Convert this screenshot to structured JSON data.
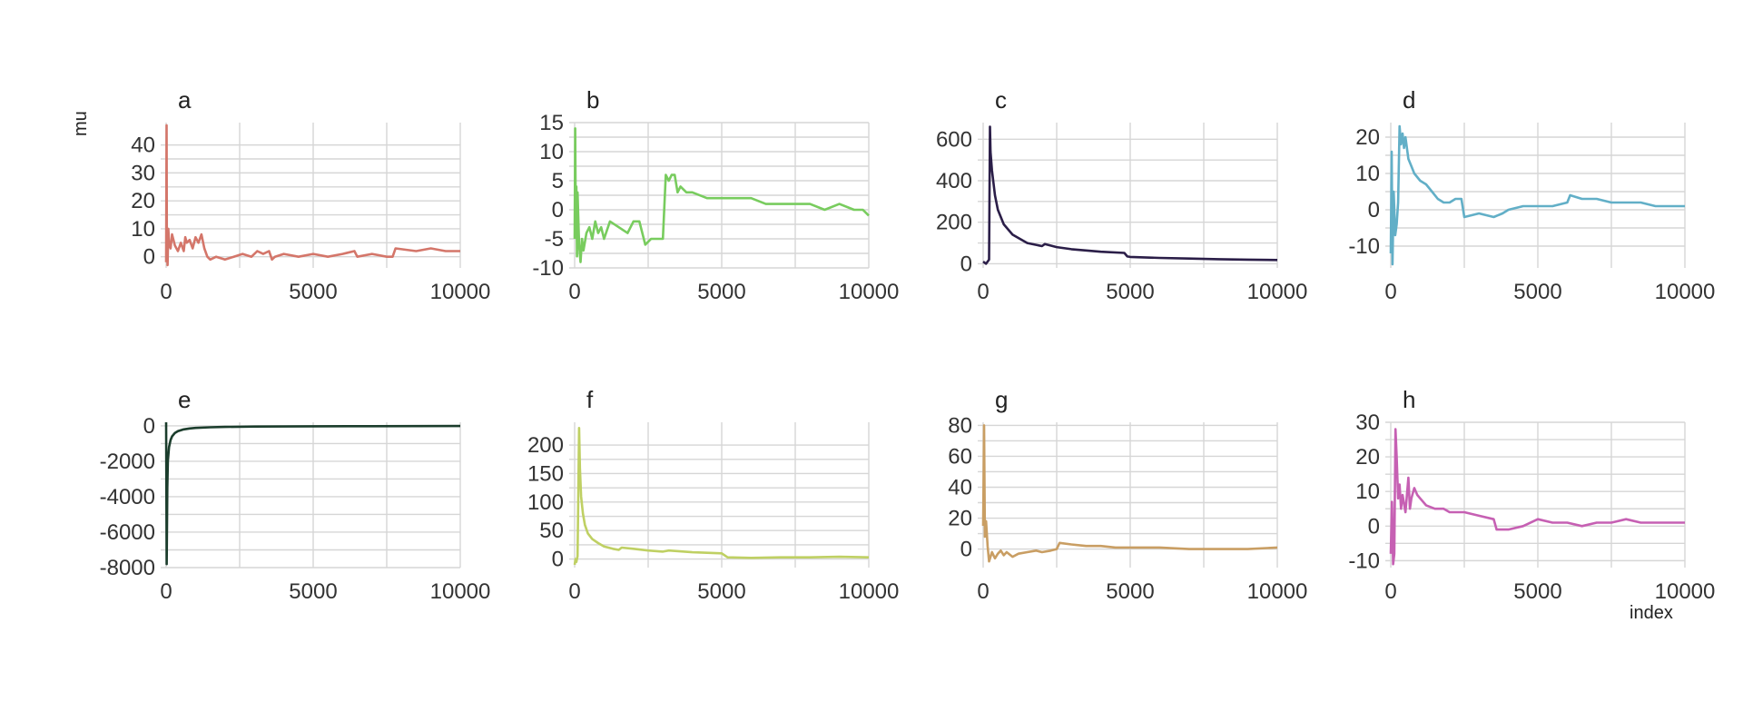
{
  "figure": {
    "ylabel": "mu",
    "xlabel": "index"
  },
  "chart_data": [
    {
      "type": "line",
      "title": "a",
      "color": "#d4766a",
      "xlim": [
        0,
        10000
      ],
      "ylim": [
        -4,
        48
      ],
      "xticks": [
        0,
        5000,
        10000
      ],
      "yticks": [
        0,
        10,
        20,
        30,
        40
      ],
      "series": [
        {
          "x": [
            0,
            15,
            25,
            50,
            75,
            100,
            150,
            200,
            300,
            400,
            500,
            600,
            650,
            700,
            800,
            900,
            1000,
            1100,
            1200,
            1300,
            1400,
            1500,
            1700,
            2000,
            2300,
            2600,
            2900,
            3100,
            3300,
            3500,
            3600,
            3700,
            4000,
            4500,
            5000,
            5500,
            6000,
            6400,
            6500,
            7000,
            7500,
            7700,
            7800,
            8500,
            9000,
            9500,
            10000
          ],
          "y": [
            -2,
            47,
            5,
            -3,
            10,
            5,
            3,
            8,
            4,
            2,
            5,
            2,
            7,
            5,
            6,
            3,
            7,
            5,
            8,
            3,
            0,
            -1,
            0,
            -1,
            0,
            1,
            0,
            2,
            1,
            2,
            -1,
            0,
            1,
            0,
            1,
            0,
            1,
            2,
            0,
            1,
            0,
            0,
            3,
            2,
            3,
            2,
            2
          ]
        }
      ]
    },
    {
      "type": "line",
      "title": "b",
      "color": "#78cc5e",
      "xlim": [
        0,
        10000
      ],
      "ylim": [
        -10,
        15
      ],
      "xticks": [
        0,
        5000,
        10000
      ],
      "yticks": [
        -10,
        -5,
        0,
        5,
        10,
        15
      ],
      "series": [
        {
          "x": [
            0,
            20,
            40,
            60,
            80,
            100,
            150,
            200,
            250,
            300,
            400,
            500,
            600,
            700,
            800,
            900,
            1000,
            1200,
            1500,
            1800,
            2000,
            2200,
            2400,
            2600,
            2800,
            3000,
            3100,
            3200,
            3300,
            3400,
            3500,
            3600,
            3800,
            4000,
            4500,
            5000,
            5500,
            6000,
            6500,
            7000,
            7500,
            8000,
            8500,
            9000,
            9500,
            9800,
            10000
          ],
          "y": [
            -5,
            14,
            -4,
            4,
            -8,
            3,
            -6,
            -9,
            -5,
            -7,
            -4,
            -3,
            -5,
            -2,
            -4,
            -3,
            -5,
            -2,
            -3,
            -4,
            -2,
            -2,
            -6,
            -5,
            -5,
            -5,
            6,
            5,
            6,
            6,
            3,
            4,
            3,
            3,
            2,
            2,
            2,
            2,
            1,
            1,
            1,
            1,
            0,
            1,
            0,
            0,
            -1
          ]
        }
      ]
    },
    {
      "type": "line",
      "title": "c",
      "color": "#2b1e48",
      "xlim": [
        0,
        10000
      ],
      "ylim": [
        -20,
        680
      ],
      "xticks": [
        0,
        5000,
        10000
      ],
      "yticks": [
        0,
        200,
        400,
        600
      ],
      "series": [
        {
          "x": [
            0,
            100,
            200,
            230,
            250,
            300,
            400,
            500,
            700,
            1000,
            1500,
            2000,
            2100,
            2500,
            3000,
            4000,
            4800,
            4900,
            5000,
            6000,
            7000,
            8000,
            9000,
            10000
          ],
          "y": [
            10,
            0,
            20,
            660,
            540,
            450,
            330,
            260,
            190,
            140,
            100,
            85,
            95,
            80,
            70,
            58,
            52,
            35,
            33,
            28,
            25,
            22,
            20,
            18
          ]
        }
      ]
    },
    {
      "type": "line",
      "title": "d",
      "color": "#62afc7",
      "xlim": [
        0,
        10000
      ],
      "ylim": [
        -16,
        24
      ],
      "xticks": [
        0,
        5000,
        10000
      ],
      "yticks": [
        -10,
        0,
        10,
        20
      ],
      "series": [
        {
          "x": [
            0,
            30,
            60,
            100,
            150,
            200,
            250,
            300,
            350,
            400,
            450,
            500,
            600,
            700,
            800,
            1000,
            1200,
            1400,
            1600,
            1800,
            2000,
            2200,
            2400,
            2500,
            3000,
            3500,
            3800,
            4000,
            4500,
            5000,
            5500,
            6000,
            6100,
            6500,
            7000,
            7500,
            8000,
            8500,
            9000,
            9500,
            10000
          ],
          "y": [
            -12,
            16,
            -15,
            5,
            -7,
            -4,
            2,
            23,
            18,
            21,
            17,
            20,
            14,
            12,
            10,
            8,
            7,
            5,
            3,
            2,
            2,
            3,
            3,
            -2,
            -1,
            -2,
            -1,
            0,
            1,
            1,
            1,
            2,
            4,
            3,
            3,
            2,
            2,
            2,
            1,
            1,
            1
          ]
        }
      ]
    },
    {
      "type": "line",
      "title": "e",
      "color": "#1b3d2c",
      "xlim": [
        0,
        10000
      ],
      "ylim": [
        -8000,
        200
      ],
      "xticks": [
        0,
        5000,
        10000
      ],
      "yticks": [
        0,
        -2000,
        -4000,
        -6000,
        -8000
      ],
      "series": [
        {
          "x": [
            0,
            20,
            40,
            60,
            100,
            150,
            200,
            300,
            400,
            600,
            800,
            1000,
            1500,
            2000,
            3000,
            5000,
            7000,
            10000
          ],
          "y": [
            200,
            -7800,
            -3500,
            -2000,
            -1200,
            -800,
            -600,
            -400,
            -300,
            -200,
            -150,
            -120,
            -80,
            -60,
            -40,
            -25,
            -18,
            -12
          ]
        }
      ]
    },
    {
      "type": "line",
      "title": "f",
      "color": "#bfd063",
      "xlim": [
        0,
        10000
      ],
      "ylim": [
        -15,
        240
      ],
      "xticks": [
        0,
        5000,
        10000
      ],
      "yticks": [
        0,
        50,
        100,
        150,
        200
      ],
      "series": [
        {
          "x": [
            0,
            30,
            60,
            100,
            150,
            180,
            220,
            280,
            350,
            450,
            600,
            800,
            1000,
            1300,
            1500,
            1600,
            2000,
            2500,
            3000,
            3200,
            4000,
            5000,
            5200,
            6000,
            7000,
            8000,
            9000,
            10000
          ],
          "y": [
            -10,
            0,
            -5,
            5,
            230,
            160,
            110,
            80,
            60,
            45,
            35,
            28,
            22,
            18,
            16,
            20,
            18,
            15,
            13,
            15,
            12,
            10,
            3,
            2,
            3,
            3,
            4,
            3
          ]
        }
      ]
    },
    {
      "type": "line",
      "title": "g",
      "color": "#c99e63",
      "xlim": [
        0,
        10000
      ],
      "ylim": [
        -12,
        82
      ],
      "xticks": [
        0,
        5000,
        10000
      ],
      "yticks": [
        0,
        20,
        40,
        60,
        80
      ],
      "series": [
        {
          "x": [
            0,
            30,
            60,
            100,
            150,
            200,
            300,
            400,
            500,
            600,
            700,
            800,
            1000,
            1200,
            1500,
            1800,
            2000,
            2300,
            2500,
            2600,
            3000,
            3500,
            4000,
            4500,
            5000,
            6000,
            7000,
            8000,
            9000,
            10000
          ],
          "y": [
            15,
            80,
            8,
            18,
            2,
            -8,
            -2,
            -6,
            -3,
            -1,
            -4,
            -2,
            -5,
            -3,
            -2,
            -1,
            -2,
            -1,
            0,
            4,
            3,
            2,
            2,
            1,
            1,
            1,
            0,
            0,
            0,
            1
          ]
        }
      ]
    },
    {
      "type": "line",
      "title": "h",
      "color": "#c660b3",
      "xlim": [
        0,
        10000
      ],
      "ylim": [
        -12,
        30
      ],
      "xticks": [
        0,
        5000,
        10000
      ],
      "yticks": [
        -10,
        0,
        10,
        20,
        30
      ],
      "series": [
        {
          "x": [
            0,
            40,
            80,
            120,
            160,
            200,
            250,
            300,
            350,
            400,
            500,
            600,
            650,
            700,
            800,
            900,
            1000,
            1200,
            1500,
            1800,
            2000,
            2500,
            3000,
            3500,
            3600,
            4000,
            4500,
            5000,
            5500,
            6000,
            6500,
            7000,
            7500,
            8000,
            8500,
            9000,
            9500,
            10000
          ],
          "y": [
            -8,
            7,
            -11,
            -8,
            28,
            20,
            8,
            12,
            5,
            9,
            4,
            14,
            5,
            8,
            11,
            9,
            8,
            6,
            5,
            5,
            4,
            4,
            3,
            2,
            -1,
            -1,
            0,
            2,
            1,
            1,
            0,
            1,
            1,
            2,
            1,
            1,
            1,
            1
          ]
        }
      ]
    }
  ]
}
